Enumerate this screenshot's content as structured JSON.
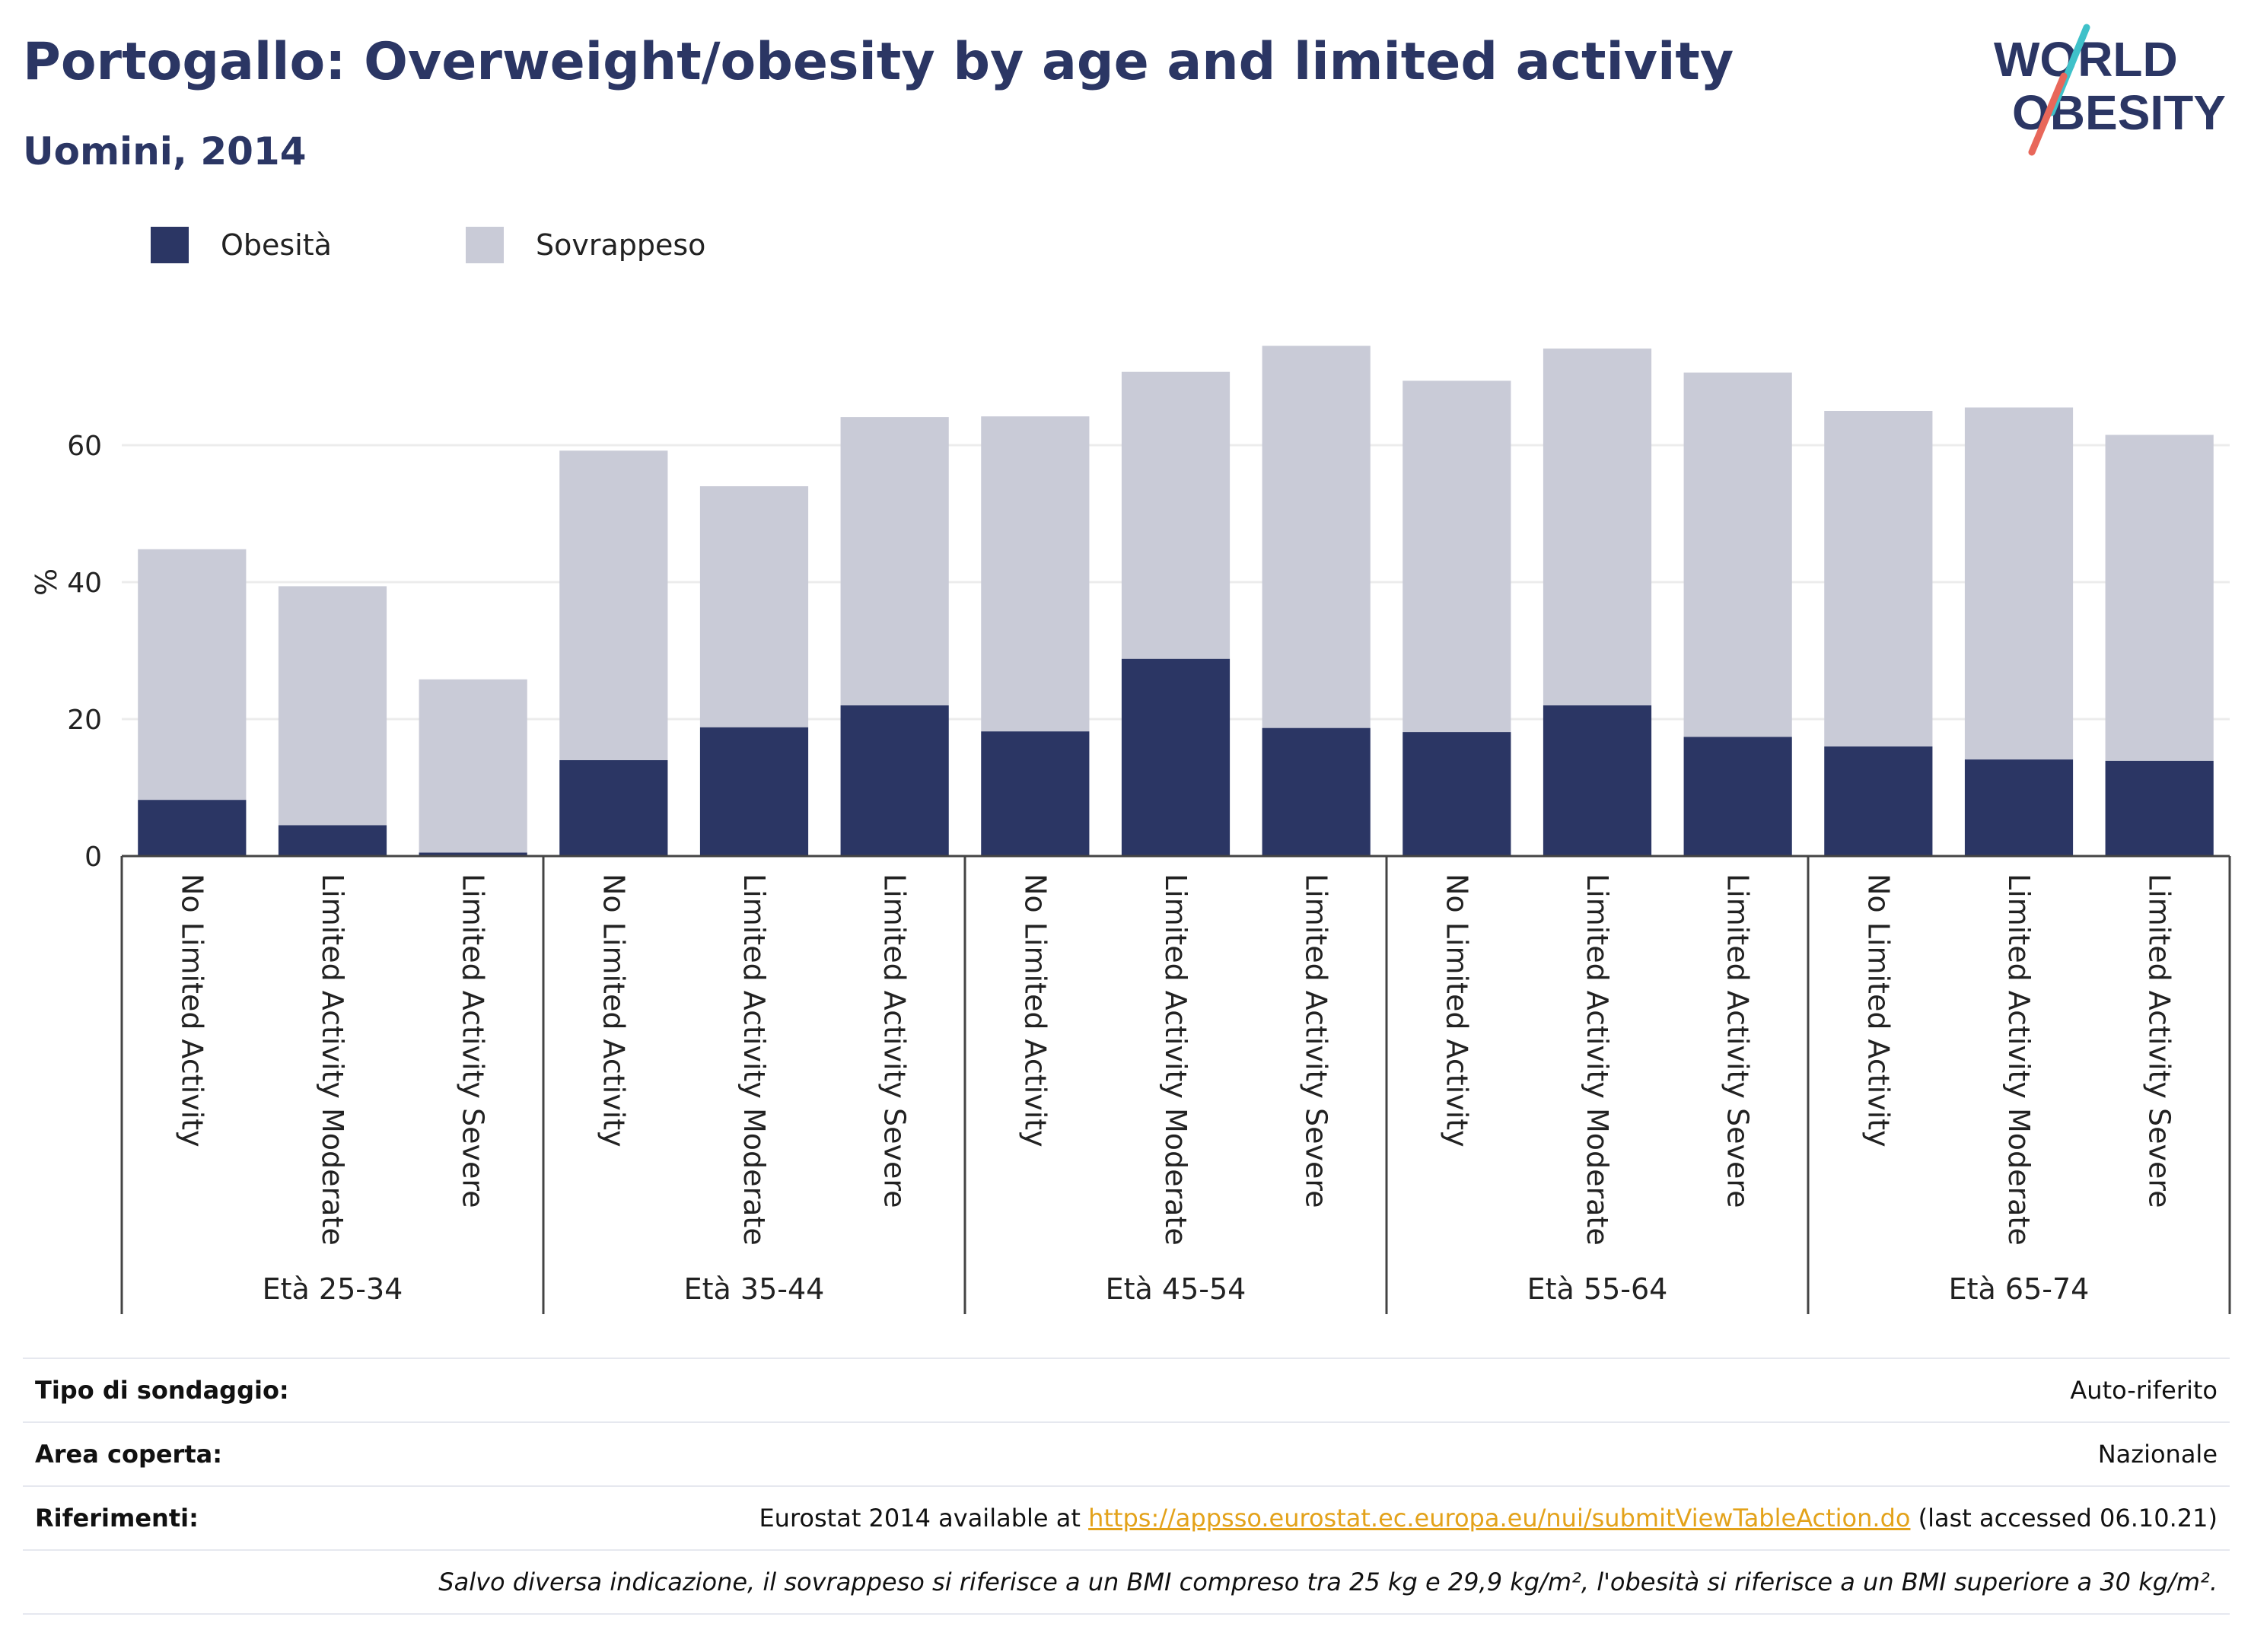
{
  "header": {
    "title": "Portogallo: Overweight/obesity by age and limited activity",
    "subtitle": "Uomini, 2014"
  },
  "logo": {
    "line1": "WORLD",
    "line2": "OBESITY"
  },
  "colors": {
    "obesity": "#2b3664",
    "overweight": "#c9cbd7",
    "title": "#2b3664",
    "link": "#e3a21a"
  },
  "legend": [
    {
      "label": "Obesità",
      "color": "#2b3664"
    },
    {
      "label": "Sovrappeso",
      "color": "#c9cbd7"
    }
  ],
  "chart_data": {
    "type": "bar",
    "stacked": true,
    "ylabel": "%",
    "ylim": [
      0,
      80
    ],
    "yticks": [
      0,
      20,
      40,
      60
    ],
    "grid": true,
    "legend_position": "top-left",
    "groups": [
      "Età 25-34",
      "Età 35-44",
      "Età 45-54",
      "Età 55-64",
      "Età 65-74"
    ],
    "categories": [
      "No Limited Activity",
      "Limited Activity Moderate",
      "Limited Activity Severe",
      "No Limited Activity",
      "Limited Activity Moderate",
      "Limited Activity Severe",
      "No Limited Activity",
      "Limited Activity Moderate",
      "Limited Activity Severe",
      "No Limited Activity",
      "Limited Activity Moderate",
      "Limited Activity Severe",
      "No Limited Activity",
      "Limited Activity Moderate",
      "Limited Activity Severe"
    ],
    "series": [
      {
        "name": "Obesità",
        "values": [
          8.2,
          4.5,
          0.5,
          14.0,
          18.8,
          22.0,
          18.2,
          28.8,
          18.7,
          18.1,
          22.0,
          17.4,
          16.0,
          14.1,
          13.9
        ]
      },
      {
        "name": "Sovrappeso",
        "values": [
          36.6,
          34.9,
          25.3,
          45.2,
          35.2,
          42.1,
          46.0,
          41.9,
          55.8,
          51.3,
          52.1,
          53.2,
          49.0,
          51.4,
          47.6
        ]
      }
    ]
  },
  "info": {
    "survey_label": "Tipo di sondaggio:",
    "survey_value": "Auto-riferito",
    "area_label": "Area coperta:",
    "area_value": "Nazionale",
    "refs_label": "Riferimenti:",
    "refs_prefix": "Eurostat 2014 available at ",
    "refs_link": "https://appsso.eurostat.ec.europa.eu/nui/submitViewTableAction.do",
    "refs_suffix": " (last accessed 06.10.21)",
    "note": "Salvo diversa indicazione, il sovrappeso si riferisce a un BMI compreso tra 25 kg e 29,9 kg/m², l'obesità si riferisce a un BMI superiore a 30 kg/m²."
  }
}
